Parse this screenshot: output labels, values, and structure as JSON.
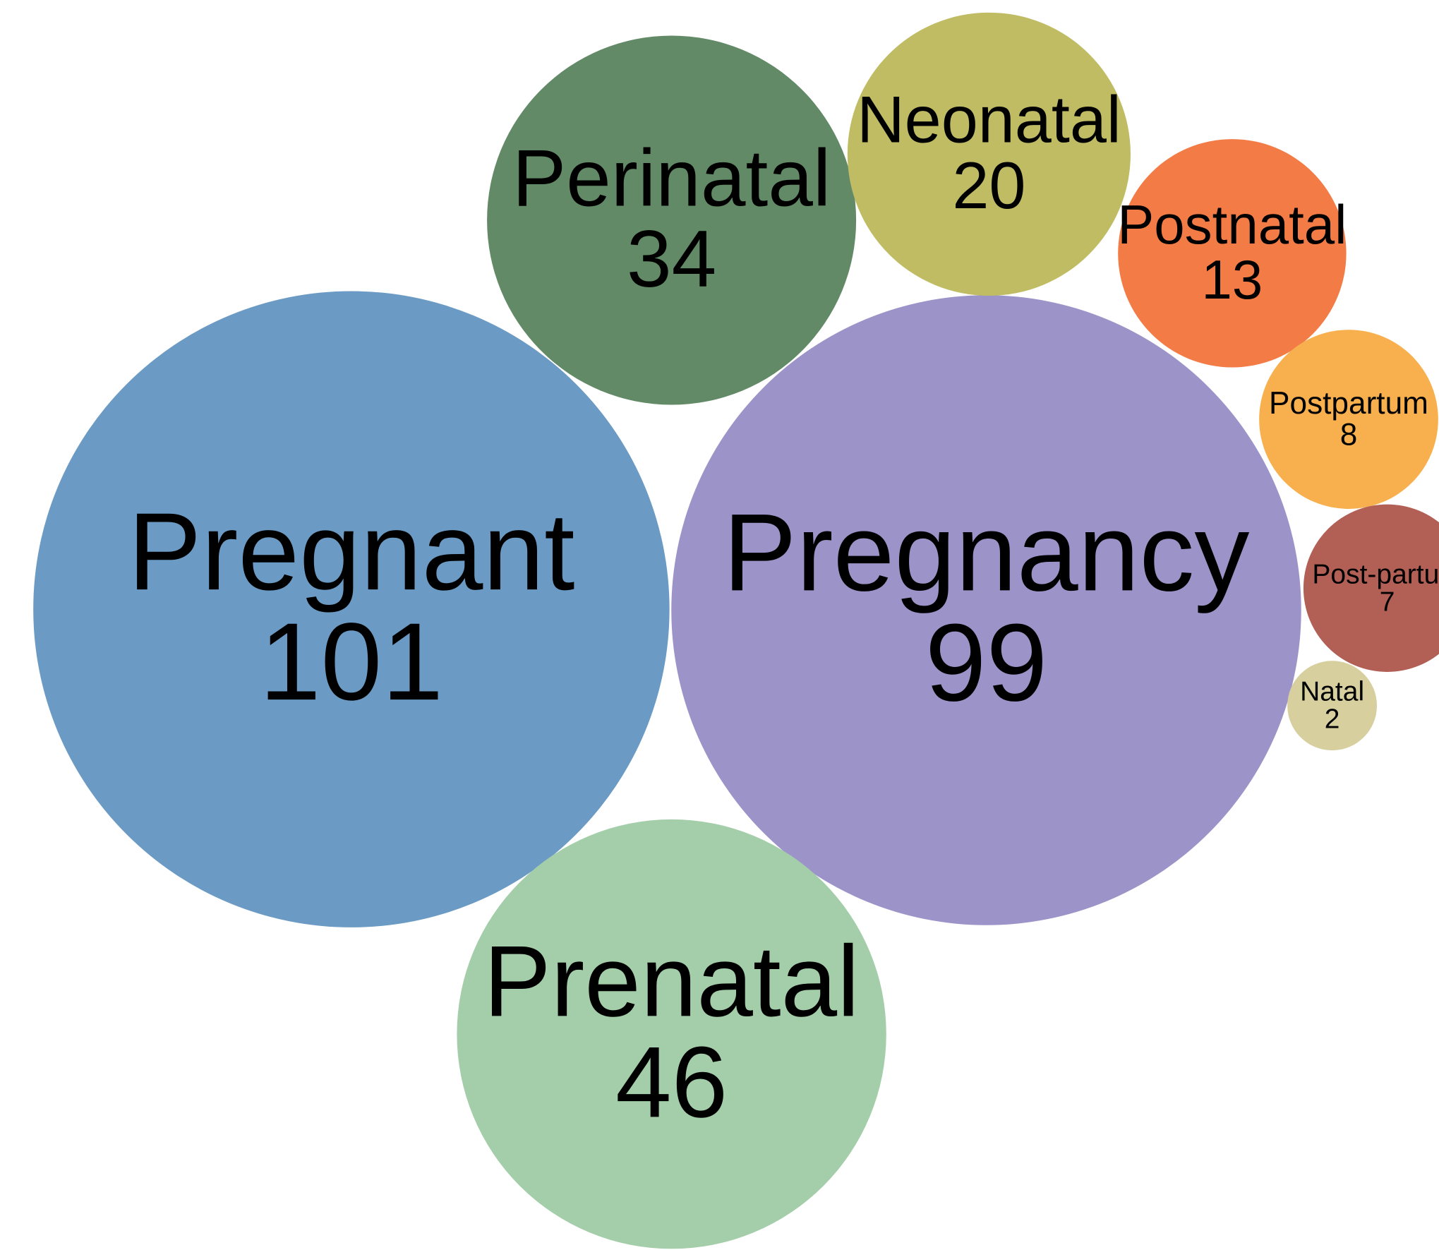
{
  "chart_data": {
    "type": "bubble",
    "categories": [
      "Pregnant",
      "Pregnancy",
      "Prenatal",
      "Perinatal",
      "Neonatal",
      "Postnatal",
      "Postpartum",
      "Post-partum",
      "Natal"
    ],
    "values": [
      101,
      99,
      46,
      34,
      20,
      13,
      8,
      7,
      2
    ],
    "colors": [
      "#6b9bc4",
      "#9c94c9",
      "#a3cea9",
      "#628a66",
      "#bfbc64",
      "#f37b45",
      "#f8b04e",
      "#b25f55",
      "#d8cf9e"
    ]
  }
}
